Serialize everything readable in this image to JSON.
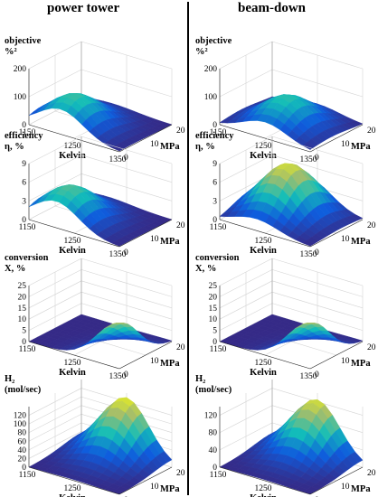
{
  "columns": [
    "power tower",
    "beam-down"
  ],
  "chart_data": [
    {
      "type": "surface3d",
      "column": "power tower",
      "zlabel_lines": [
        "objective",
        "%²"
      ],
      "zticks": [
        "0",
        "100",
        "200"
      ],
      "zlim": [
        0,
        200
      ],
      "xlabel": "Kelvin",
      "xticks": [
        "1150",
        "1250",
        "1350"
      ],
      "xlim": [
        1150,
        1350
      ],
      "ylabel": "MPa",
      "yticks": [
        "0",
        "10",
        "20"
      ],
      "ylim": [
        0,
        20
      ],
      "peak": [
        1220,
        5,
        115
      ]
    },
    {
      "type": "surface3d",
      "column": "beam-down",
      "zlabel_lines": [
        "objective",
        "%²"
      ],
      "zticks": [
        "0",
        "100",
        "200"
      ],
      "zlim": [
        0,
        200
      ],
      "xlabel": "Kelvin",
      "xticks": [
        "1150",
        "1250",
        "1350"
      ],
      "xlim": [
        1150,
        1350
      ],
      "ylabel": "MPa",
      "yticks": [
        "0",
        "10",
        "20"
      ],
      "ylim": [
        0,
        20
      ],
      "peak": [
        1250,
        8,
        110
      ]
    },
    {
      "type": "surface3d",
      "column": "power tower",
      "zlabel_lines": [
        "efficiency",
        "η, %"
      ],
      "zticks": [
        "0",
        "3",
        "6",
        "9"
      ],
      "zlim": [
        0,
        9
      ],
      "xlabel": "Kelvin",
      "xticks": [
        "1150",
        "1250",
        "1350"
      ],
      "xlim": [
        1150,
        1350
      ],
      "ylabel": "MPa",
      "yticks": [
        "0",
        "10",
        "20"
      ],
      "ylim": [
        0,
        20
      ],
      "peak": [
        1210,
        5,
        5.5
      ]
    },
    {
      "type": "surface3d",
      "column": "beam-down",
      "zlabel_lines": [
        "efficiency",
        "η, %"
      ],
      "zticks": [
        "0",
        "3",
        "6",
        "9"
      ],
      "zlim": [
        0,
        9
      ],
      "xlabel": "Kelvin",
      "xticks": [
        "1150",
        "1250",
        "1350"
      ],
      "xlim": [
        1150,
        1350
      ],
      "ylabel": "MPa",
      "yticks": [
        "0",
        "10",
        "20"
      ],
      "ylim": [
        0,
        20
      ],
      "peak": [
        1230,
        12,
        8
      ]
    },
    {
      "type": "surface3d",
      "column": "power tower",
      "zlabel_lines": [
        "conversion",
        "X, %"
      ],
      "zticks": [
        "0",
        "5",
        "10",
        "15",
        "20",
        "25"
      ],
      "zlim": [
        0,
        25
      ],
      "xlabel": "Kelvin",
      "xticks": [
        "1150",
        "1250",
        "1350"
      ],
      "xlim": [
        1150,
        1350
      ],
      "ylabel": "MPa",
      "yticks": [
        "0",
        "10",
        "20"
      ],
      "ylim": [
        0,
        20
      ],
      "peak": [
        1350,
        0,
        20
      ]
    },
    {
      "type": "surface3d",
      "column": "beam-down",
      "zlabel_lines": [
        "conversion",
        "X, %"
      ],
      "zticks": [
        "0",
        "5",
        "10",
        "15",
        "20",
        "25"
      ],
      "zlim": [
        0,
        25
      ],
      "xlabel": "Kelvin",
      "xticks": [
        "1150",
        "1250",
        "1350"
      ],
      "xlim": [
        1150,
        1350
      ],
      "ylabel": "MPa",
      "yticks": [
        "0",
        "10",
        "20"
      ],
      "ylim": [
        0,
        20
      ],
      "peak": [
        1350,
        0,
        20
      ]
    },
    {
      "type": "surface3d",
      "column": "power tower",
      "zlabel_lines": [
        "H₂",
        "(mol/sec)"
      ],
      "zticks": [
        "0",
        "20",
        "40",
        "60",
        "80",
        "100",
        "120"
      ],
      "zlim": [
        0,
        140
      ],
      "xlabel": "Kelvin",
      "xticks": [
        "1150",
        "1250",
        "1350"
      ],
      "xlim": [
        1150,
        1350
      ],
      "ylabel": "MPa",
      "yticks": [
        "0",
        "10",
        "20"
      ],
      "ylim": [
        0,
        20
      ],
      "peak": [
        1250,
        20,
        130
      ]
    },
    {
      "type": "surface3d",
      "column": "beam-down",
      "zlabel_lines": [
        "H₂",
        "(mol/sec)"
      ],
      "zticks": [
        "0",
        "40",
        "80",
        "120"
      ],
      "zlim": [
        0,
        140
      ],
      "xlabel": "Kelvin",
      "xticks": [
        "1150",
        "1250",
        "1350"
      ],
      "xlim": [
        1150,
        1350
      ],
      "ylabel": "MPa",
      "yticks": [
        "0",
        "10",
        "20"
      ],
      "ylim": [
        0,
        20
      ],
      "peak": [
        1250,
        20,
        125
      ]
    }
  ]
}
